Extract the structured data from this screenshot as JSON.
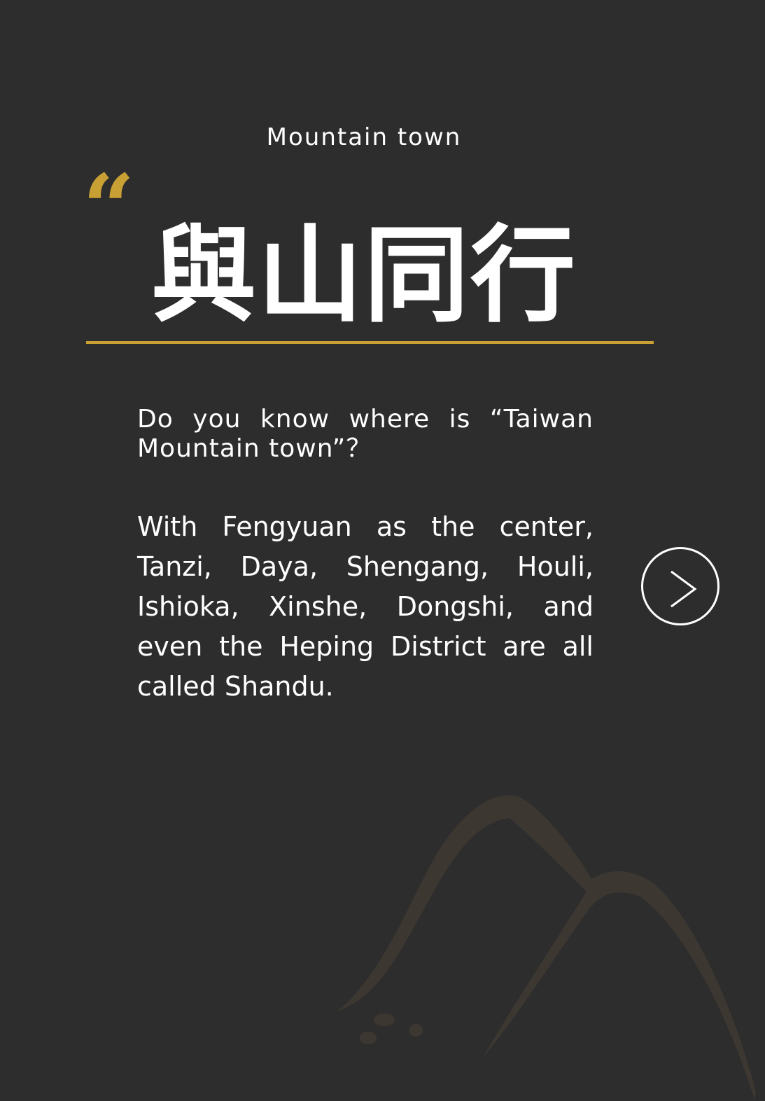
{
  "section": {
    "subtitle": "Mountain town",
    "quote_icon": "opening-quote-icon",
    "headline": "與山同行",
    "question": "Do you know where is  “Taiwan Mountain town”？",
    "body": "With Fengyuan as the center, Tanzi, Daya, Shengang, Houli, Ishioka, Xinshe, Dongshi, and even the Heping District are all called Shandu."
  },
  "navigation": {
    "next_icon": "chevron-right-icon"
  },
  "colors": {
    "background": "#2d2d2d",
    "accent": "#c9a034",
    "text": "#ffffff",
    "decoration": "#3d3731"
  }
}
